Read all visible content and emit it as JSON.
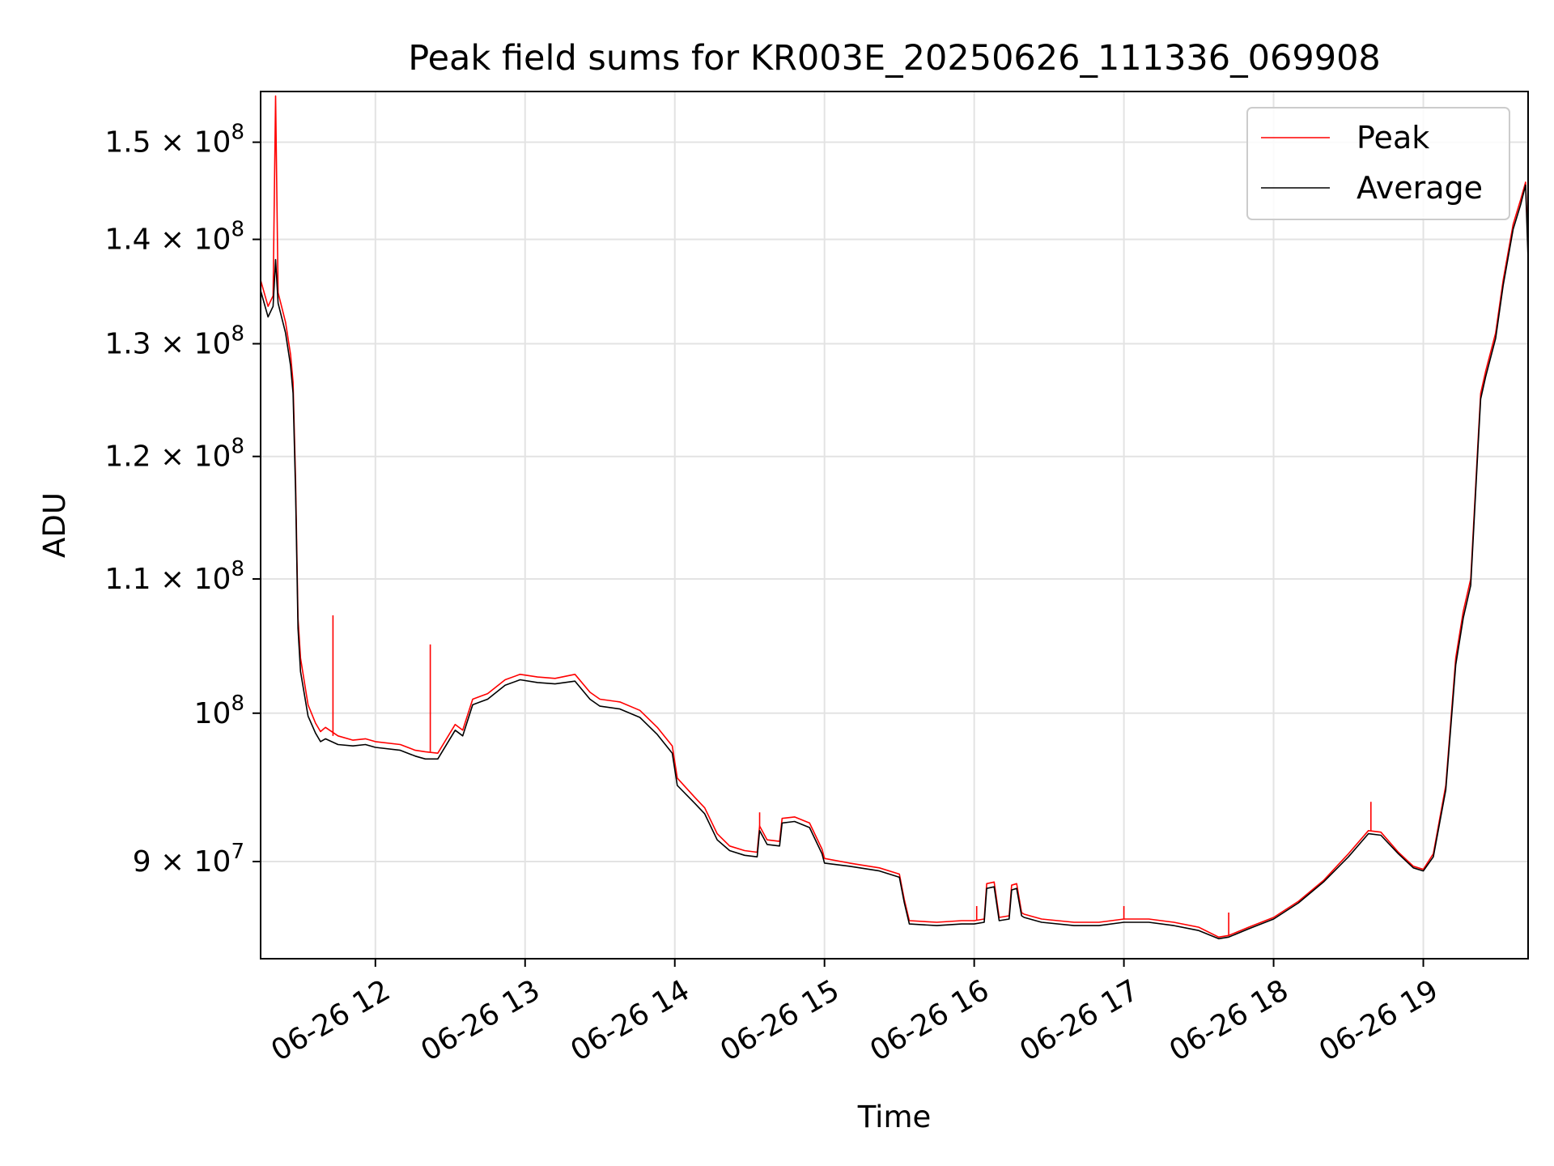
{
  "chart_data": {
    "type": "line",
    "title": "Peak field sums for KR003E_20250626_111336_069908",
    "xlabel": "Time",
    "ylabel": "ADU",
    "y_scale": "log",
    "xlim": [
      "2025-06-26 11:14",
      "2025-06-26 19:42"
    ],
    "ylim": [
      84000000,
      155500000
    ],
    "grid": true,
    "legend_position": "top-right",
    "x_ticks": [
      {
        "value": "2025-06-26 12:00",
        "label": "06-26 12"
      },
      {
        "value": "2025-06-26 13:00",
        "label": "06-26 13"
      },
      {
        "value": "2025-06-26 14:00",
        "label": "06-26 14"
      },
      {
        "value": "2025-06-26 15:00",
        "label": "06-26 15"
      },
      {
        "value": "2025-06-26 16:00",
        "label": "06-26 16"
      },
      {
        "value": "2025-06-26 17:00",
        "label": "06-26 17"
      },
      {
        "value": "2025-06-26 18:00",
        "label": "06-26 18"
      },
      {
        "value": "2025-06-26 19:00",
        "label": "06-26 19"
      }
    ],
    "y_ticks": [
      {
        "value": 90000000,
        "base": "9",
        "sup": "7"
      },
      {
        "value": 100000000,
        "base": "",
        "sup": "8"
      },
      {
        "value": 110000000,
        "base": "1.1",
        "sup": "8"
      },
      {
        "value": 120000000,
        "base": "1.2",
        "sup": "8"
      },
      {
        "value": 130000000,
        "base": "1.3",
        "sup": "8"
      },
      {
        "value": 140000000,
        "base": "1.4",
        "sup": "8"
      },
      {
        "value": 150000000,
        "base": "1.5",
        "sup": "8"
      }
    ],
    "series": [
      {
        "name": "Peak",
        "color": "#ff0000",
        "x": [
          "2025-06-26 11:14",
          "2025-06-26 11:17",
          "2025-06-26 11:19",
          "2025-06-26 11:20",
          "2025-06-26 11:21",
          "2025-06-26 11:24",
          "2025-06-26 11:26",
          "2025-06-26 11:27",
          "2025-06-26 11:28",
          "2025-06-26 11:29",
          "2025-06-26 11:30",
          "2025-06-26 11:33",
          "2025-06-26 11:36",
          "2025-06-26 11:38",
          "2025-06-26 11:40",
          "2025-06-26 11:45",
          "2025-06-26 11:51",
          "2025-06-26 11:56",
          "2025-06-26 12:00",
          "2025-06-26 12:10",
          "2025-06-26 12:16",
          "2025-06-26 12:20",
          "2025-06-26 12:25",
          "2025-06-26 12:32",
          "2025-06-26 12:35",
          "2025-06-26 12:39",
          "2025-06-26 12:42",
          "2025-06-26 12:45",
          "2025-06-26 12:52",
          "2025-06-26 12:58",
          "2025-06-26 13:05",
          "2025-06-26 13:12",
          "2025-06-26 13:20",
          "2025-06-26 13:26",
          "2025-06-26 13:30",
          "2025-06-26 13:38",
          "2025-06-26 13:46",
          "2025-06-26 13:53",
          "2025-06-26 13:59",
          "2025-06-26 14:01",
          "2025-06-26 14:08",
          "2025-06-26 14:12",
          "2025-06-26 14:17",
          "2025-06-26 14:22",
          "2025-06-26 14:28",
          "2025-06-26 14:33",
          "2025-06-26 14:34",
          "2025-06-26 14:37",
          "2025-06-26 14:42",
          "2025-06-26 14:43",
          "2025-06-26 14:48",
          "2025-06-26 14:54",
          "2025-06-26 14:59",
          "2025-06-26 15:00",
          "2025-06-26 15:10",
          "2025-06-26 15:22",
          "2025-06-26 15:30",
          "2025-06-26 15:32",
          "2025-06-26 15:34",
          "2025-06-26 15:45",
          "2025-06-26 15:55",
          "2025-06-26 16:00",
          "2025-06-26 16:04",
          "2025-06-26 16:05",
          "2025-06-26 16:08",
          "2025-06-26 16:10",
          "2025-06-26 16:14",
          "2025-06-26 16:15",
          "2025-06-26 16:17",
          "2025-06-26 16:19",
          "2025-06-26 16:20",
          "2025-06-26 16:27",
          "2025-06-26 16:40",
          "2025-06-26 16:50",
          "2025-06-26 17:00",
          "2025-06-26 17:10",
          "2025-06-26 17:20",
          "2025-06-26 17:30",
          "2025-06-26 17:38",
          "2025-06-26 17:42",
          "2025-06-26 17:50",
          "2025-06-26 18:00",
          "2025-06-26 18:10",
          "2025-06-26 18:20",
          "2025-06-26 18:30",
          "2025-06-26 18:38",
          "2025-06-26 18:43",
          "2025-06-26 18:50",
          "2025-06-26 18:56",
          "2025-06-26 19:00",
          "2025-06-26 19:04",
          "2025-06-26 19:09",
          "2025-06-26 19:13",
          "2025-06-26 19:16",
          "2025-06-26 19:19",
          "2025-06-26 19:22",
          "2025-06-26 19:23",
          "2025-06-26 19:25",
          "2025-06-26 19:29",
          "2025-06-26 19:32",
          "2025-06-26 19:36",
          "2025-06-26 19:39",
          "2025-06-26 19:41",
          "2025-06-26 19:42"
        ],
        "y": [
          136000000,
          133500000,
          134500000,
          155000000,
          134800000,
          132000000,
          129000000,
          126500000,
          118000000,
          107000000,
          104000000,
          100600000,
          99300000,
          98700000,
          99000000,
          98400000,
          98100000,
          98200000,
          98000000,
          97800000,
          97400000,
          97300000,
          97200000,
          99200000,
          98800000,
          101000000,
          101200000,
          101400000,
          102400000,
          102800000,
          102600000,
          102500000,
          102800000,
          101500000,
          101000000,
          100800000,
          100200000,
          99000000,
          97700000,
          95500000,
          94200000,
          93500000,
          91800000,
          91000000,
          90700000,
          90600000,
          92300000,
          91400000,
          91300000,
          92800000,
          92900000,
          92500000,
          90800000,
          90200000,
          89900000,
          89600000,
          89200000,
          87600000,
          86300000,
          86200000,
          86300000,
          86300000,
          86400000,
          88600000,
          88700000,
          86500000,
          86600000,
          88500000,
          88600000,
          86800000,
          86700000,
          86400000,
          86200000,
          86200000,
          86400000,
          86400000,
          86200000,
          85900000,
          85300000,
          85400000,
          85900000,
          86500000,
          87500000,
          88800000,
          90500000,
          92000000,
          91900000,
          90600000,
          89700000,
          89500000,
          90500000,
          95000000,
          104000000,
          107500000,
          110000000,
          121500000,
          125500000,
          127500000,
          131000000,
          136000000,
          141500000,
          144000000,
          145800000,
          139000000
        ],
        "spikes": [
          [
            "2025-06-26 11:20",
            155000000
          ],
          [
            "2025-06-26 11:43",
            107200000
          ],
          [
            "2025-06-26 12:22",
            105000000
          ],
          [
            "2025-06-26 14:34",
            93200000
          ],
          [
            "2025-06-26 16:01",
            87200000
          ],
          [
            "2025-06-26 17:00",
            87200000
          ],
          [
            "2025-06-26 17:42",
            86800000
          ],
          [
            "2025-06-26 18:39",
            93900000
          ]
        ]
      },
      {
        "name": "Average",
        "color": "#000000",
        "x": [
          "2025-06-26 11:14",
          "2025-06-26 11:17",
          "2025-06-26 11:19",
          "2025-06-26 11:20",
          "2025-06-26 11:21",
          "2025-06-26 11:24",
          "2025-06-26 11:26",
          "2025-06-26 11:27",
          "2025-06-26 11:28",
          "2025-06-26 11:29",
          "2025-06-26 11:30",
          "2025-06-26 11:33",
          "2025-06-26 11:36",
          "2025-06-26 11:38",
          "2025-06-26 11:40",
          "2025-06-26 11:45",
          "2025-06-26 11:51",
          "2025-06-26 11:56",
          "2025-06-26 12:00",
          "2025-06-26 12:10",
          "2025-06-26 12:16",
          "2025-06-26 12:20",
          "2025-06-26 12:25",
          "2025-06-26 12:32",
          "2025-06-26 12:35",
          "2025-06-26 12:39",
          "2025-06-26 12:42",
          "2025-06-26 12:45",
          "2025-06-26 12:52",
          "2025-06-26 12:58",
          "2025-06-26 13:05",
          "2025-06-26 13:12",
          "2025-06-26 13:20",
          "2025-06-26 13:26",
          "2025-06-26 13:30",
          "2025-06-26 13:38",
          "2025-06-26 13:46",
          "2025-06-26 13:53",
          "2025-06-26 13:59",
          "2025-06-26 14:01",
          "2025-06-26 14:08",
          "2025-06-26 14:12",
          "2025-06-26 14:17",
          "2025-06-26 14:22",
          "2025-06-26 14:28",
          "2025-06-26 14:33",
          "2025-06-26 14:34",
          "2025-06-26 14:37",
          "2025-06-26 14:42",
          "2025-06-26 14:43",
          "2025-06-26 14:48",
          "2025-06-26 14:54",
          "2025-06-26 14:59",
          "2025-06-26 15:00",
          "2025-06-26 15:10",
          "2025-06-26 15:22",
          "2025-06-26 15:30",
          "2025-06-26 15:32",
          "2025-06-26 15:34",
          "2025-06-26 15:45",
          "2025-06-26 15:55",
          "2025-06-26 16:00",
          "2025-06-26 16:04",
          "2025-06-26 16:05",
          "2025-06-26 16:08",
          "2025-06-26 16:10",
          "2025-06-26 16:14",
          "2025-06-26 16:15",
          "2025-06-26 16:17",
          "2025-06-26 16:19",
          "2025-06-26 16:20",
          "2025-06-26 16:27",
          "2025-06-26 16:40",
          "2025-06-26 16:50",
          "2025-06-26 17:00",
          "2025-06-26 17:10",
          "2025-06-26 17:20",
          "2025-06-26 17:30",
          "2025-06-26 17:38",
          "2025-06-26 17:42",
          "2025-06-26 17:50",
          "2025-06-26 18:00",
          "2025-06-26 18:10",
          "2025-06-26 18:20",
          "2025-06-26 18:30",
          "2025-06-26 18:38",
          "2025-06-26 18:43",
          "2025-06-26 18:50",
          "2025-06-26 18:56",
          "2025-06-26 19:00",
          "2025-06-26 19:04",
          "2025-06-26 19:09",
          "2025-06-26 19:13",
          "2025-06-26 19:16",
          "2025-06-26 19:19",
          "2025-06-26 19:22",
          "2025-06-26 19:23",
          "2025-06-26 19:25",
          "2025-06-26 19:29",
          "2025-06-26 19:32",
          "2025-06-26 19:36",
          "2025-06-26 19:39",
          "2025-06-26 19:41",
          "2025-06-26 19:42"
        ],
        "y": [
          135000000,
          132500000,
          133500000,
          138000000,
          133800000,
          131000000,
          128000000,
          125500000,
          117000000,
          106200000,
          103000000,
          99800000,
          98600000,
          98000000,
          98200000,
          97800000,
          97700000,
          97800000,
          97600000,
          97400000,
          97000000,
          96800000,
          96800000,
          98800000,
          98400000,
          100600000,
          100800000,
          101000000,
          102000000,
          102400000,
          102200000,
          102100000,
          102300000,
          101000000,
          100500000,
          100300000,
          99700000,
          98500000,
          97200000,
          95000000,
          93800000,
          93100000,
          91400000,
          90700000,
          90400000,
          90300000,
          92000000,
          91100000,
          91000000,
          92500000,
          92600000,
          92200000,
          90500000,
          89900000,
          89700000,
          89400000,
          89000000,
          87400000,
          86100000,
          86000000,
          86100000,
          86100000,
          86200000,
          88300000,
          88400000,
          86300000,
          86400000,
          88200000,
          88300000,
          86600000,
          86500000,
          86200000,
          86000000,
          86000000,
          86200000,
          86200000,
          86000000,
          85700000,
          85200000,
          85300000,
          85800000,
          86400000,
          87400000,
          88700000,
          90300000,
          91800000,
          91700000,
          90500000,
          89600000,
          89400000,
          90300000,
          94700000,
          103500000,
          107000000,
          109500000,
          121000000,
          125000000,
          127000000,
          130500000,
          135500000,
          141000000,
          143500000,
          145500000,
          138000000
        ]
      }
    ]
  }
}
